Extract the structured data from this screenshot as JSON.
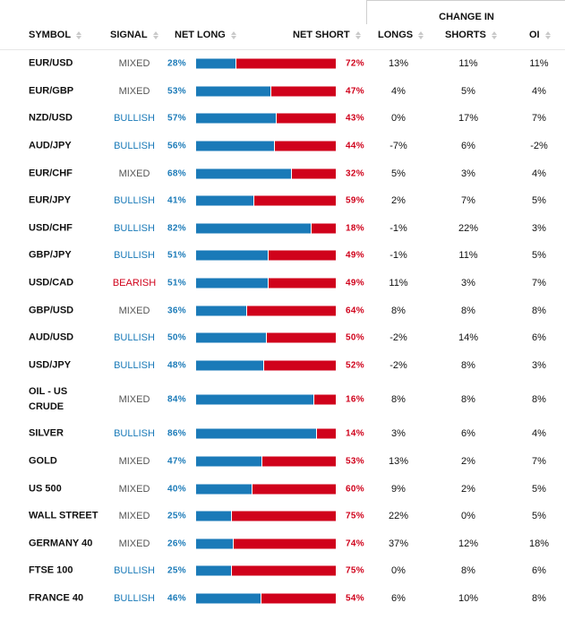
{
  "header": {
    "group_label": "CHANGE IN",
    "columns": [
      {
        "key": "symbol",
        "label": "SYMBOL"
      },
      {
        "key": "signal",
        "label": "SIGNAL"
      },
      {
        "key": "net_long",
        "label": "NET LONG"
      },
      {
        "key": "net_short",
        "label": "NET SHORT"
      },
      {
        "key": "longs",
        "label": "LONGS"
      },
      {
        "key": "shorts",
        "label": "SHORTS"
      },
      {
        "key": "oi",
        "label": "OI"
      }
    ]
  },
  "colors": {
    "long": "#1a7ab8",
    "short": "#d0021b",
    "mixed": "#555555"
  },
  "rows": [
    {
      "symbol": "EUR/USD",
      "signal": "MIXED",
      "net_long": "28%",
      "net_short": "72%",
      "longs": "13%",
      "shorts": "11%",
      "oi": "11%",
      "long_pct": 28
    },
    {
      "symbol": "EUR/GBP",
      "signal": "MIXED",
      "net_long": "53%",
      "net_short": "47%",
      "longs": "4%",
      "shorts": "5%",
      "oi": "4%",
      "long_pct": 53
    },
    {
      "symbol": "NZD/USD",
      "signal": "BULLISH",
      "net_long": "57%",
      "net_short": "43%",
      "longs": "0%",
      "shorts": "17%",
      "oi": "7%",
      "long_pct": 57
    },
    {
      "symbol": "AUD/JPY",
      "signal": "BULLISH",
      "net_long": "56%",
      "net_short": "44%",
      "longs": "-7%",
      "shorts": "6%",
      "oi": "-2%",
      "long_pct": 56
    },
    {
      "symbol": "EUR/CHF",
      "signal": "MIXED",
      "net_long": "68%",
      "net_short": "32%",
      "longs": "5%",
      "shorts": "3%",
      "oi": "4%",
      "long_pct": 68
    },
    {
      "symbol": "EUR/JPY",
      "signal": "BULLISH",
      "net_long": "41%",
      "net_short": "59%",
      "longs": "2%",
      "shorts": "7%",
      "oi": "5%",
      "long_pct": 41
    },
    {
      "symbol": "USD/CHF",
      "signal": "BULLISH",
      "net_long": "82%",
      "net_short": "18%",
      "longs": "-1%",
      "shorts": "22%",
      "oi": "3%",
      "long_pct": 82
    },
    {
      "symbol": "GBP/JPY",
      "signal": "BULLISH",
      "net_long": "51%",
      "net_short": "49%",
      "longs": "-1%",
      "shorts": "11%",
      "oi": "5%",
      "long_pct": 51
    },
    {
      "symbol": "USD/CAD",
      "signal": "BEARISH",
      "net_long": "51%",
      "net_short": "49%",
      "longs": "11%",
      "shorts": "3%",
      "oi": "7%",
      "long_pct": 51
    },
    {
      "symbol": "GBP/USD",
      "signal": "MIXED",
      "net_long": "36%",
      "net_short": "64%",
      "longs": "8%",
      "shorts": "8%",
      "oi": "8%",
      "long_pct": 36
    },
    {
      "symbol": "AUD/USD",
      "signal": "BULLISH",
      "net_long": "50%",
      "net_short": "50%",
      "longs": "-2%",
      "shorts": "14%",
      "oi": "6%",
      "long_pct": 50
    },
    {
      "symbol": "USD/JPY",
      "signal": "BULLISH",
      "net_long": "48%",
      "net_short": "52%",
      "longs": "-2%",
      "shorts": "8%",
      "oi": "3%",
      "long_pct": 48
    },
    {
      "symbol": "OIL - US CRUDE",
      "symbol_line1": "OIL - US",
      "symbol_line2": "CRUDE",
      "signal": "MIXED",
      "net_long": "84%",
      "net_short": "16%",
      "longs": "8%",
      "shorts": "8%",
      "oi": "8%",
      "long_pct": 84
    },
    {
      "symbol": "SILVER",
      "signal": "BULLISH",
      "net_long": "86%",
      "net_short": "14%",
      "longs": "3%",
      "shorts": "6%",
      "oi": "4%",
      "long_pct": 86
    },
    {
      "symbol": "GOLD",
      "signal": "MIXED",
      "net_long": "47%",
      "net_short": "53%",
      "longs": "13%",
      "shorts": "2%",
      "oi": "7%",
      "long_pct": 47
    },
    {
      "symbol": "US 500",
      "signal": "MIXED",
      "net_long": "40%",
      "net_short": "60%",
      "longs": "9%",
      "shorts": "2%",
      "oi": "5%",
      "long_pct": 40
    },
    {
      "symbol": "WALL STREET",
      "signal": "MIXED",
      "net_long": "25%",
      "net_short": "75%",
      "longs": "22%",
      "shorts": "0%",
      "oi": "5%",
      "long_pct": 25
    },
    {
      "symbol": "GERMANY 40",
      "signal": "MIXED",
      "net_long": "26%",
      "net_short": "74%",
      "longs": "37%",
      "shorts": "12%",
      "oi": "18%",
      "long_pct": 26
    },
    {
      "symbol": "FTSE 100",
      "signal": "BULLISH",
      "net_long": "25%",
      "net_short": "75%",
      "longs": "0%",
      "shorts": "8%",
      "oi": "6%",
      "long_pct": 25
    },
    {
      "symbol": "FRANCE 40",
      "signal": "BULLISH",
      "net_long": "46%",
      "net_short": "54%",
      "longs": "6%",
      "shorts": "10%",
      "oi": "8%",
      "long_pct": 46
    }
  ]
}
